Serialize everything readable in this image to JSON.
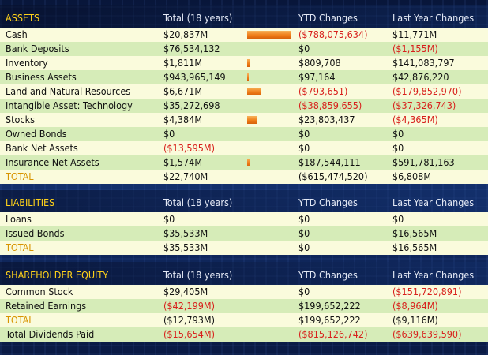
{
  "columns": {
    "total": "Total (18 years)",
    "ytd": "YTD Changes",
    "last_year": "Last Year Changes"
  },
  "sections": [
    {
      "title": "ASSETS",
      "rows": [
        {
          "label": "Cash",
          "total": "$20,837M",
          "bar": 0.98,
          "ytd": "($788,075,634)",
          "last": "$11,771M",
          "neg": [
            false,
            true,
            false
          ]
        },
        {
          "label": "Bank Deposits",
          "total": "$76,534,132",
          "bar": 0.0,
          "ytd": "$0",
          "last": "($1,155M)",
          "neg": [
            false,
            false,
            true
          ]
        },
        {
          "label": "Inventory",
          "total": "$1,811M",
          "bar": 0.06,
          "ytd": "$809,708",
          "last": "$141,083,797",
          "neg": [
            false,
            false,
            false
          ]
        },
        {
          "label": "Business Assets",
          "total": "$943,965,149",
          "bar": 0.03,
          "ytd": "$97,164",
          "last": "$42,876,220",
          "neg": [
            false,
            false,
            false
          ]
        },
        {
          "label": "Land and Natural Resources",
          "total": "$6,671M",
          "bar": 0.31,
          "ytd": "($793,651)",
          "last": "($179,852,970)",
          "neg": [
            false,
            true,
            true
          ]
        },
        {
          "label": "Intangible Asset: Technology",
          "total": "$35,272,698",
          "bar": 0.0,
          "ytd": "($38,859,655)",
          "last": "($37,326,743)",
          "neg": [
            false,
            true,
            true
          ]
        },
        {
          "label": "Stocks",
          "total": "$4,384M",
          "bar": 0.21,
          "ytd": "$23,803,437",
          "last": "($4,365M)",
          "neg": [
            false,
            false,
            true
          ]
        },
        {
          "label": "Owned Bonds",
          "total": "$0",
          "bar": 0,
          "ytd": "$0",
          "last": "$0",
          "neg": [
            false,
            false,
            false
          ]
        },
        {
          "label": "Bank Net Assets",
          "total": "($13,595M)",
          "bar": 0,
          "ytd": "$0",
          "last": "$0",
          "neg": [
            true,
            false,
            false
          ]
        },
        {
          "label": "Insurance Net Assets",
          "total": "$1,574M",
          "bar": 0.07,
          "ytd": "$187,544,111",
          "last": "$591,781,163",
          "neg": [
            false,
            false,
            false
          ]
        }
      ],
      "total_row": {
        "label": "TOTAL",
        "total": "$22,740M",
        "ytd": "($615,474,520)",
        "last": "$6,808M",
        "neg": [
          false,
          true,
          false
        ]
      }
    },
    {
      "title": "LIABILITIES",
      "rows": [
        {
          "label": "Loans",
          "total": "$0",
          "bar": 0,
          "ytd": "$0",
          "last": "$0",
          "neg": [
            false,
            false,
            false
          ]
        },
        {
          "label": "Issued Bonds",
          "total": "$35,533M",
          "bar": 0,
          "ytd": "$0",
          "last": "$16,565M",
          "neg": [
            false,
            false,
            false
          ]
        }
      ],
      "total_row": {
        "label": "TOTAL",
        "total": "$35,533M",
        "ytd": "$0",
        "last": "$16,565M",
        "neg": [
          false,
          false,
          false
        ]
      }
    },
    {
      "title": "SHAREHOLDER EQUITY",
      "rows": [
        {
          "label": "Common Stock",
          "total": "$29,405M",
          "bar": 0,
          "ytd": "$0",
          "last": "($151,720,891)",
          "neg": [
            false,
            false,
            true
          ]
        },
        {
          "label": "Retained Earnings",
          "total": "($42,199M)",
          "bar": 0,
          "ytd": "$199,652,222",
          "last": "($8,964M)",
          "neg": [
            true,
            false,
            true
          ]
        }
      ],
      "total_row": {
        "label": "TOTAL",
        "total": "($12,793M)",
        "ytd": "$199,652,222",
        "last": "($9,116M)",
        "neg": [
          true,
          false,
          true
        ]
      },
      "extra_row": {
        "label": "Total Dividends Paid",
        "total": "($15,654M)",
        "ytd": "($815,126,742)",
        "last": "($639,639,590)",
        "neg": [
          true,
          true,
          true
        ]
      }
    }
  ],
  "colors": {
    "section_title": "#ffd21a",
    "negative": "#d8201c",
    "total_label": "#d89400",
    "bar": "#ef7d18"
  }
}
